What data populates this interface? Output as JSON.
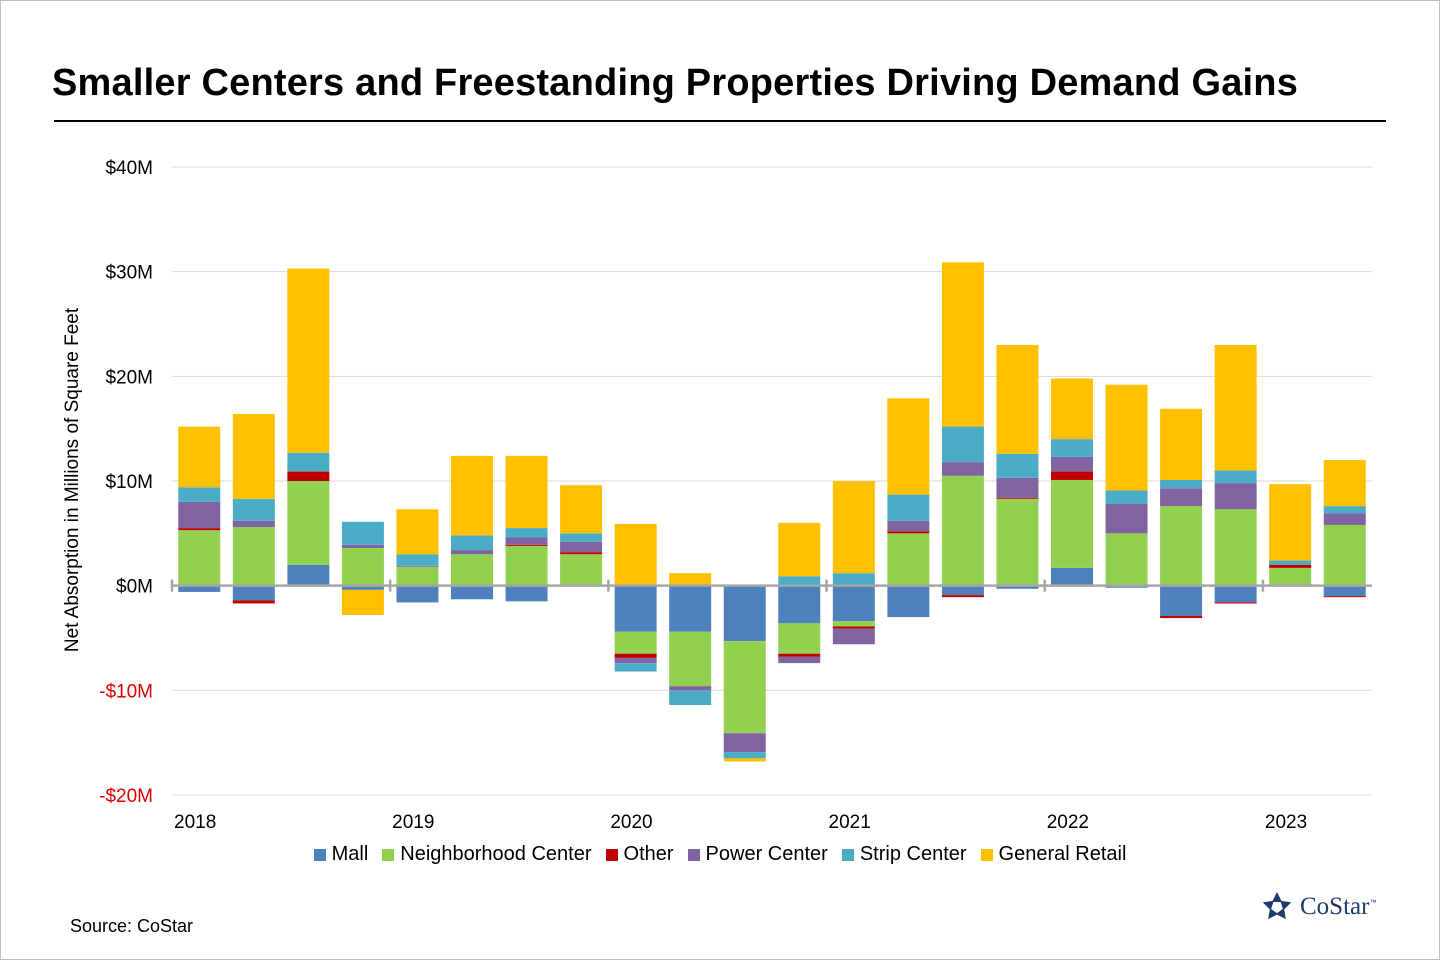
{
  "title": "Smaller Centers and Freestanding Properties Driving Demand Gains",
  "source": "Source: CoStar",
  "logo": {
    "text": "CoStar",
    "tm": "™"
  },
  "chart_data": {
    "type": "bar",
    "stacked": true,
    "ylabel": "Net Absorption in Millions of Square Feet",
    "ylim": [
      -20,
      40
    ],
    "yticks": [
      {
        "value": 40,
        "label": "$40M"
      },
      {
        "value": 30,
        "label": "$30M"
      },
      {
        "value": 20,
        "label": "$20M"
      },
      {
        "value": 10,
        "label": "$10M"
      },
      {
        "value": 0,
        "label": "$0M"
      },
      {
        "value": -10,
        "label": "-$10M"
      },
      {
        "value": -20,
        "label": "-$20M"
      }
    ],
    "year_labels": [
      "2018",
      "2019",
      "2020",
      "2021",
      "2022",
      "2023"
    ],
    "categories": [
      "2018 Q1",
      "2018 Q2",
      "2018 Q3",
      "2018 Q4",
      "2019 Q1",
      "2019 Q2",
      "2019 Q3",
      "2019 Q4",
      "2020 Q1",
      "2020 Q2",
      "2020 Q3",
      "2020 Q4",
      "2021 Q1",
      "2021 Q2",
      "2021 Q3",
      "2021 Q4",
      "2022 Q1",
      "2022 Q2",
      "2022 Q3",
      "2022 Q4",
      "2023 Q1",
      "2023 Q2"
    ],
    "grid": true,
    "legend_position": "bottom",
    "negative_tick_color": "#e00000",
    "series": [
      {
        "name": "Mall",
        "color": "#4f81bd",
        "values": [
          -0.6,
          -1.4,
          2.0,
          -0.4,
          -1.6,
          -1.3,
          -1.5,
          0,
          -4.4,
          -4.4,
          -5.3,
          -3.6,
          -3.4,
          -3.0,
          -0.9,
          -0.3,
          1.7,
          -0.2,
          -2.9,
          -1.6,
          0,
          -1.0
        ]
      },
      {
        "name": "Neighborhood Center",
        "color": "#92d050",
        "values": [
          5.3,
          5.6,
          8.0,
          3.6,
          1.8,
          3.0,
          3.8,
          3.0,
          -2.1,
          -5.2,
          -8.8,
          -2.9,
          -0.5,
          5.0,
          10.5,
          8.3,
          8.4,
          5.0,
          7.6,
          7.3,
          1.7,
          5.8
        ]
      },
      {
        "name": "Other",
        "color": "#c00000",
        "values": [
          0.2,
          -0.3,
          0.9,
          0,
          0,
          0,
          0.1,
          0.2,
          -0.4,
          0,
          0,
          -0.3,
          -0.2,
          0.2,
          -0.2,
          0.1,
          0.8,
          0,
          -0.2,
          -0.1,
          0.3,
          -0.1
        ]
      },
      {
        "name": "Power Center",
        "color": "#8064a2",
        "values": [
          2.5,
          0.6,
          0,
          0.3,
          0.1,
          0.4,
          0.7,
          1.0,
          -0.5,
          -0.4,
          -1.8,
          -0.6,
          -1.5,
          1.0,
          1.3,
          1.9,
          1.4,
          2.8,
          1.7,
          2.5,
          0,
          1.1
        ]
      },
      {
        "name": "Strip Center",
        "color": "#4bacc6",
        "values": [
          1.4,
          2.1,
          1.8,
          2.2,
          1.1,
          1.4,
          0.9,
          0.8,
          -0.8,
          -1.4,
          -0.6,
          0.9,
          1.2,
          2.5,
          3.4,
          2.3,
          1.7,
          1.3,
          0.8,
          1.2,
          0.4,
          0.7
        ]
      },
      {
        "name": "General Retail",
        "color": "#ffc000",
        "values": [
          5.8,
          8.1,
          17.6,
          -2.4,
          4.3,
          7.6,
          6.9,
          4.6,
          5.9,
          1.2,
          -0.3,
          5.1,
          8.8,
          9.2,
          15.7,
          10.4,
          5.8,
          10.1,
          6.8,
          12.0,
          7.3,
          4.4
        ]
      }
    ]
  }
}
